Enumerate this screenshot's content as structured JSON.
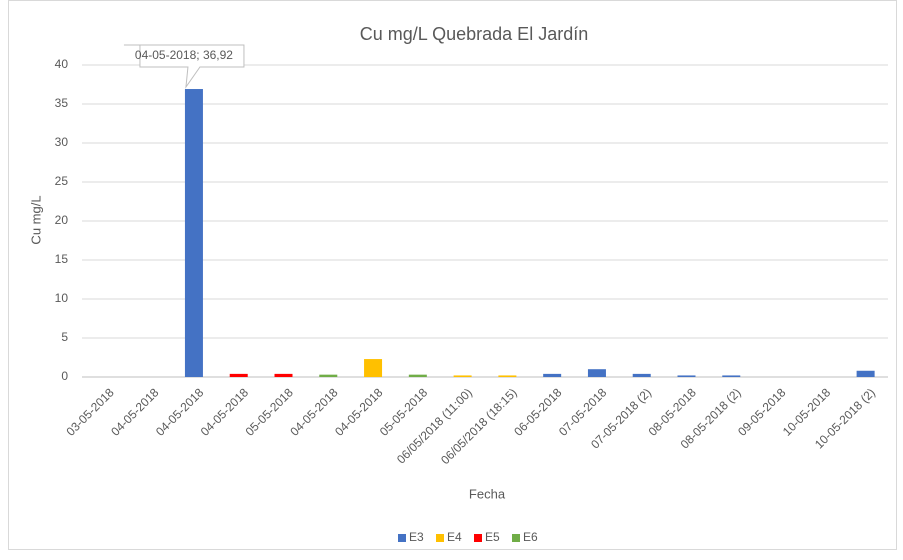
{
  "chart_data": {
    "type": "bar",
    "title": "Cu mg/L Quebrada El Jardín",
    "xlabel": "Fecha",
    "ylabel": "Cu mg/L",
    "categories": [
      "03-05-2018",
      "04-05-2018",
      "04-05-2018",
      "04-05-2018",
      "05-05-2018",
      "04-05-2018",
      "04-05-2018",
      "05-05-2018",
      "06/05/2018 (11:00)",
      "06/05/2018 (18:15)",
      "06-05-2018",
      "07-05-2018",
      "07-05-2018 (2)",
      "08-05-2018",
      "08-05-2018 (2)",
      "09-05-2018",
      "10-05-2018",
      "10-05-2018 (2)"
    ],
    "series": [
      {
        "name": "E3",
        "color": "#4472c4",
        "values": [
          null,
          null,
          36.92,
          null,
          null,
          null,
          null,
          null,
          null,
          null,
          0.4,
          1.0,
          0.4,
          0.2,
          0.2,
          null,
          null,
          0.8
        ],
        "value_labels": [
          null,
          null,
          "04-05-2018; 36,92",
          null,
          null,
          null,
          null,
          null,
          null,
          null,
          null,
          null,
          null,
          null,
          null,
          null,
          null,
          null
        ]
      },
      {
        "name": "E4",
        "color": "#ffc000",
        "values": [
          null,
          null,
          null,
          null,
          null,
          null,
          2.3,
          null,
          0.2,
          0.2,
          null,
          null,
          null,
          null,
          null,
          null,
          null,
          null
        ]
      },
      {
        "name": "E5",
        "color": "#ff0000",
        "values": [
          null,
          null,
          null,
          0.4,
          0.4,
          null,
          null,
          null,
          null,
          null,
          null,
          null,
          null,
          null,
          null,
          null,
          null,
          null
        ]
      },
      {
        "name": "E6",
        "color": "#70ad47",
        "values": [
          null,
          null,
          null,
          null,
          null,
          0.3,
          null,
          0.3,
          null,
          null,
          null,
          null,
          null,
          null,
          null,
          null,
          null,
          null
        ]
      }
    ],
    "ylim": [
      0,
      40
    ],
    "yticks": [
      0,
      5,
      10,
      15,
      20,
      25,
      30,
      35,
      40
    ],
    "grid": true,
    "legend": "bottom"
  }
}
